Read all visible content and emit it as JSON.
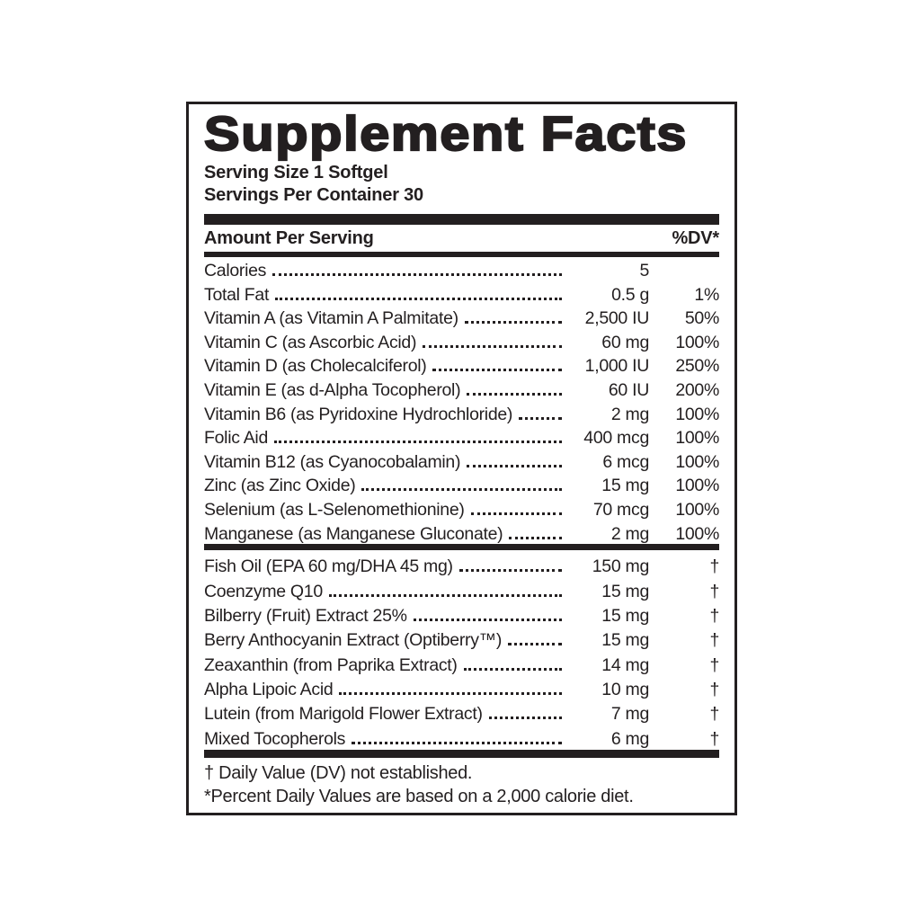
{
  "label": {
    "title": "Supplement Facts",
    "serving_size": "Serving Size 1 Softgel",
    "servings_per_container": "Servings Per Container 30",
    "header": {
      "left": "Amount Per Serving",
      "right": "%DV*"
    },
    "section1": [
      {
        "name": "Calories",
        "amount": "5",
        "dv": ""
      },
      {
        "name": "Total Fat",
        "amount": "0.5 g",
        "dv": "1%"
      },
      {
        "name": "Vitamin A (as Vitamin A Palmitate)",
        "amount": "2,500 IU",
        "dv": "50%"
      },
      {
        "name": "Vitamin C (as Ascorbic Acid)",
        "amount": "60 mg",
        "dv": "100%"
      },
      {
        "name": "Vitamin D (as Cholecalciferol)",
        "amount": "1,000 IU",
        "dv": "250%"
      },
      {
        "name": "Vitamin E (as d-Alpha Tocopherol)",
        "amount": "60 IU",
        "dv": "200%"
      },
      {
        "name": "Vitamin B6 (as Pyridoxine Hydrochloride)",
        "amount": "2 mg",
        "dv": "100%"
      },
      {
        "name": "Folic Aid",
        "amount": "400 mcg",
        "dv": "100%"
      },
      {
        "name": "Vitamin B12 (as Cyanocobalamin)",
        "amount": "6 mcg",
        "dv": "100%"
      },
      {
        "name": "Zinc (as Zinc Oxide)",
        "amount": "15 mg",
        "dv": "100%"
      },
      {
        "name": "Selenium (as L-Selenomethionine)",
        "amount": "70 mcg",
        "dv": "100%"
      },
      {
        "name": "Manganese (as Manganese Gluconate)",
        "amount": "2 mg",
        "dv": "100%"
      }
    ],
    "section2": [
      {
        "name": "Fish Oil (EPA 60 mg/DHA 45 mg)",
        "amount": "150 mg",
        "dv": "†"
      },
      {
        "name": "Coenzyme Q10",
        "amount": "15 mg",
        "dv": "†"
      },
      {
        "name": "Bilberry (Fruit) Extract 25%",
        "amount": "15 mg",
        "dv": "†"
      },
      {
        "name": "Berry Anthocyanin Extract (Optiberry™)",
        "amount": "15 mg",
        "dv": "†"
      },
      {
        "name": "Zeaxanthin (from Paprika Extract)",
        "amount": "14 mg",
        "dv": "†"
      },
      {
        "name": "Alpha Lipoic Acid",
        "amount": "10 mg",
        "dv": "†"
      },
      {
        "name": "Lutein (from Marigold Flower Extract)",
        "amount": "7 mg",
        "dv": "†"
      },
      {
        "name": "Mixed Tocopherols",
        "amount": "6 mg",
        "dv": "†"
      }
    ],
    "footnotes": [
      "† Daily Value (DV) not established.",
      "*Percent Daily Values are based on a 2,000 calorie diet."
    ],
    "colors": {
      "ink": "#231f20",
      "background": "#ffffff"
    }
  }
}
